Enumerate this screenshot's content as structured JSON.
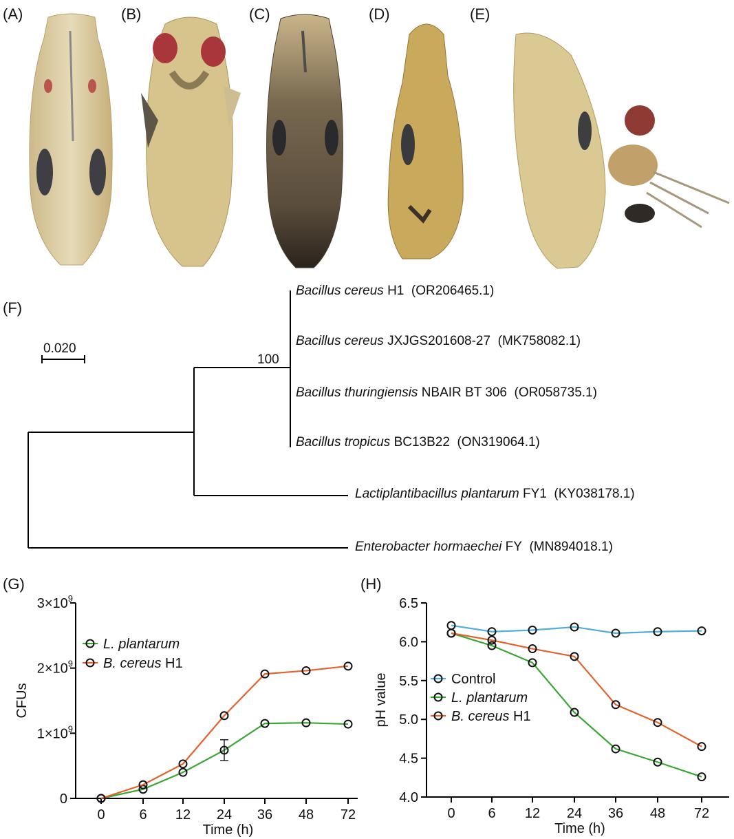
{
  "panels": {
    "A": "(A)",
    "B": "(B)",
    "C": "(C)",
    "D": "(D)",
    "E": "(E)",
    "F": "(F)",
    "G": "(G)",
    "H": "(H)"
  },
  "tree": {
    "scale_label": "0.020",
    "bootstrap": "100",
    "taxa": [
      {
        "species": "Bacillus cereus",
        "strain": "H1",
        "accession": "(OR206465.1)"
      },
      {
        "species": "Bacillus cereus",
        "strain": "JXJGS201608-27",
        "accession": "(MK758082.1)"
      },
      {
        "species": "Bacillus thuringiensis",
        "strain": "NBAIR BT 306",
        "accession": "(OR058735.1)"
      },
      {
        "species": "Bacillus tropicus",
        "strain": "BC13B22",
        "accession": "(ON319064.1)"
      },
      {
        "species": "Lactiplantibacillus plantarum",
        "strain": "FY1",
        "accession": "(KY038178.1)"
      },
      {
        "species": "Enterobacter hormaechei",
        "strain": "FY",
        "accession": "(MN894018.1)"
      }
    ]
  },
  "chart_data": [
    {
      "id": "G",
      "type": "line",
      "xlabel": "Time (h)",
      "ylabel": "CFUs",
      "categories": [
        "0",
        "6",
        "12",
        "24",
        "36",
        "48",
        "72"
      ],
      "yticks": [
        {
          "value": 0,
          "label": "0"
        },
        {
          "value": 1000000000,
          "label": "1×10",
          "exp": "9"
        },
        {
          "value": 2000000000,
          "label": "2×10",
          "exp": "9"
        },
        {
          "value": 3000000000,
          "label": "3×10",
          "exp": "9"
        }
      ],
      "ylim": [
        0,
        3000000000
      ],
      "legend": "top-left",
      "series": [
        {
          "name": "L. plantarum",
          "name_italic": "L. plantarum",
          "name_plain": "",
          "color": "#3aa635",
          "values": [
            0,
            140000000,
            400000000,
            740000000,
            1150000000,
            1160000000,
            1140000000
          ],
          "errors": [
            0,
            0,
            0,
            160000000,
            0,
            0,
            0
          ]
        },
        {
          "name": "B. cereus H1",
          "name_italic": "B. cereus",
          "name_plain": "H1",
          "color": "#e4622a",
          "values": [
            0,
            210000000,
            530000000,
            1270000000,
            1910000000,
            1960000000,
            2030000000
          ],
          "errors": [
            0,
            0,
            0,
            0,
            0,
            0,
            0
          ]
        }
      ]
    },
    {
      "id": "H",
      "type": "line",
      "xlabel": "Time (h)",
      "ylabel": "pH value",
      "categories": [
        "0",
        "6",
        "12",
        "24",
        "36",
        "48",
        "72"
      ],
      "yticks": [
        {
          "value": 4.0,
          "label": "4.0"
        },
        {
          "value": 4.5,
          "label": "4.5"
        },
        {
          "value": 5.0,
          "label": "5.0"
        },
        {
          "value": 5.5,
          "label": "5.5"
        },
        {
          "value": 6.0,
          "label": "6.0"
        },
        {
          "value": 6.5,
          "label": "6.5"
        }
      ],
      "ylim": [
        4.0,
        6.5
      ],
      "legend": "bottom-left",
      "series": [
        {
          "name": "Control",
          "name_italic": "",
          "name_plain": "Control",
          "color": "#4faedc",
          "values": [
            6.21,
            6.13,
            6.15,
            6.19,
            6.11,
            6.13,
            6.14
          ]
        },
        {
          "name": "L. plantarum",
          "name_italic": "L. plantarum",
          "name_plain": "",
          "color": "#3aa635",
          "values": [
            6.11,
            5.95,
            5.73,
            5.09,
            4.62,
            4.45,
            4.26
          ]
        },
        {
          "name": "B. cereus H1",
          "name_italic": "B. cereus",
          "name_plain": "H1",
          "color": "#e4622a",
          "values": [
            6.11,
            6.02,
            5.91,
            5.81,
            5.19,
            4.96,
            4.65
          ]
        }
      ]
    }
  ]
}
